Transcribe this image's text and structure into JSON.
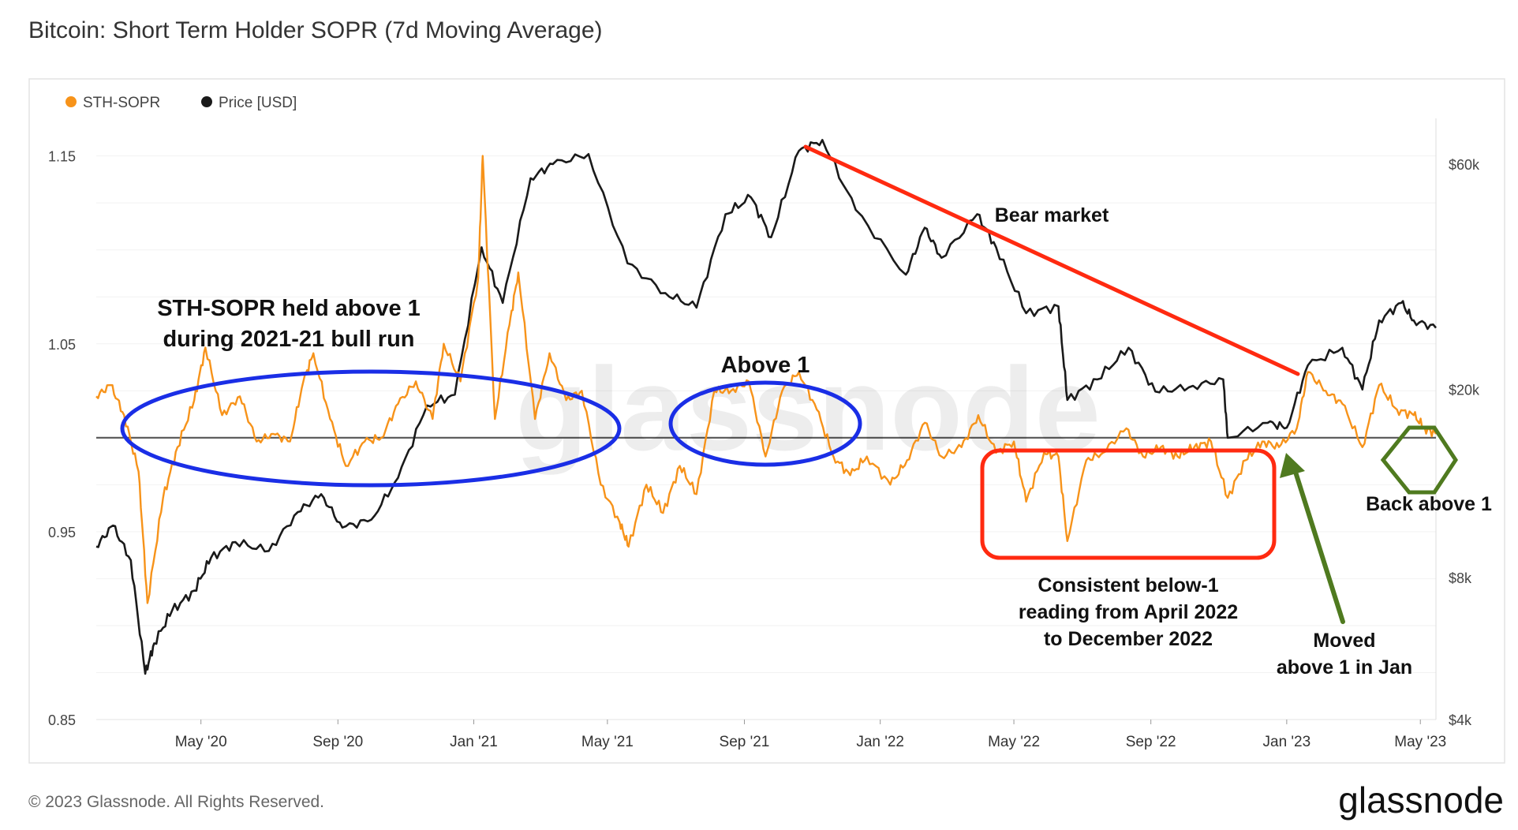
{
  "title": "Bitcoin: Short Term Holder SOPR (7d Moving Average)",
  "footer": "© 2023 Glassnode. All Rights Reserved.",
  "brand": "glassnode",
  "watermark": "glassnode",
  "colors": {
    "sopr": "#f7931a",
    "price": "#1a1a1a",
    "baseline": "#555555",
    "red": "#ff2a10",
    "blue": "#1a2ee6",
    "green": "#4f7a1f"
  },
  "chart_data": {
    "type": "line",
    "title": "Bitcoin: Short Term Holder SOPR (7d Moving Average)",
    "legend": [
      "STH-SOPR",
      "Price [USD]"
    ],
    "legend_position": "top-left",
    "x_ticks": [
      "May '20",
      "Sep '20",
      "Jan '21",
      "May '21",
      "Sep '21",
      "Jan '22",
      "May '22",
      "Sep '22",
      "Jan '23",
      "May '23"
    ],
    "y_left_ticks": [
      1.15,
      1.05,
      0.95,
      0.85
    ],
    "y_left_tick_labels": [
      "1.15",
      "1.05",
      "0.95",
      "0.85"
    ],
    "y_left_range": [
      0.85,
      1.17
    ],
    "y_right_ticks": [
      60000,
      20000,
      8000,
      4000
    ],
    "y_right_tick_labels": [
      "$60k",
      "$20k",
      "$8k",
      "$4k"
    ],
    "y_right_range": [
      4000,
      75000
    ],
    "y_right_scale": "log",
    "baseline": 1.0,
    "grid": true,
    "series": [
      {
        "name": "STH-SOPR",
        "axis": "left",
        "points": [
          [
            "2020-01-28",
            1.022
          ],
          [
            "2020-02-10",
            1.028
          ],
          [
            "2020-02-22",
            1.012
          ],
          [
            "2020-03-06",
            0.982
          ],
          [
            "2020-03-14",
            0.912
          ],
          [
            "2020-03-28",
            0.968
          ],
          [
            "2020-04-10",
            0.995
          ],
          [
            "2020-04-25",
            1.02
          ],
          [
            "2020-05-05",
            1.048
          ],
          [
            "2020-05-20",
            1.012
          ],
          [
            "2020-06-05",
            1.022
          ],
          [
            "2020-06-20",
            0.998
          ],
          [
            "2020-07-05",
            1.002
          ],
          [
            "2020-07-20",
            0.998
          ],
          [
            "2020-08-01",
            1.03
          ],
          [
            "2020-08-10",
            1.045
          ],
          [
            "2020-08-25",
            1.01
          ],
          [
            "2020-09-08",
            0.985
          ],
          [
            "2020-09-25",
            0.998
          ],
          [
            "2020-10-10",
            1.0
          ],
          [
            "2020-10-25",
            1.018
          ],
          [
            "2020-11-10",
            1.03
          ],
          [
            "2020-11-25",
            1.01
          ],
          [
            "2020-12-05",
            1.05
          ],
          [
            "2020-12-20",
            1.03
          ],
          [
            "2021-01-05",
            1.085
          ],
          [
            "2021-01-09",
            1.15
          ],
          [
            "2021-01-20",
            1.01
          ],
          [
            "2021-02-02",
            1.06
          ],
          [
            "2021-02-10",
            1.088
          ],
          [
            "2021-02-25",
            1.01
          ],
          [
            "2021-03-10",
            1.045
          ],
          [
            "2021-03-25",
            1.02
          ],
          [
            "2021-04-08",
            1.025
          ],
          [
            "2021-04-25",
            0.975
          ],
          [
            "2021-05-12",
            0.955
          ],
          [
            "2021-05-20",
            0.942
          ],
          [
            "2021-06-05",
            0.975
          ],
          [
            "2021-06-20",
            0.96
          ],
          [
            "2021-07-05",
            0.985
          ],
          [
            "2021-07-20",
            0.97
          ],
          [
            "2021-08-05",
            1.025
          ],
          [
            "2021-08-20",
            1.025
          ],
          [
            "2021-09-05",
            1.03
          ],
          [
            "2021-09-20",
            0.99
          ],
          [
            "2021-10-05",
            1.025
          ],
          [
            "2021-10-20",
            1.035
          ],
          [
            "2021-11-05",
            1.015
          ],
          [
            "2021-11-20",
            0.99
          ],
          [
            "2021-12-05",
            0.98
          ],
          [
            "2021-12-20",
            0.99
          ],
          [
            "2022-01-10",
            0.975
          ],
          [
            "2022-01-25",
            0.988
          ],
          [
            "2022-02-10",
            1.008
          ],
          [
            "2022-02-25",
            0.99
          ],
          [
            "2022-03-15",
            0.995
          ],
          [
            "2022-03-30",
            1.012
          ],
          [
            "2022-04-15",
            0.992
          ],
          [
            "2022-05-01",
            0.998
          ],
          [
            "2022-05-12",
            0.966
          ],
          [
            "2022-05-28",
            0.992
          ],
          [
            "2022-06-10",
            0.99
          ],
          [
            "2022-06-18",
            0.945
          ],
          [
            "2022-07-05",
            0.988
          ],
          [
            "2022-07-20",
            0.992
          ],
          [
            "2022-08-10",
            1.005
          ],
          [
            "2022-08-25",
            0.99
          ],
          [
            "2022-09-10",
            0.995
          ],
          [
            "2022-09-25",
            0.99
          ],
          [
            "2022-10-10",
            0.995
          ],
          [
            "2022-10-25",
            0.998
          ],
          [
            "2022-11-09",
            0.968
          ],
          [
            "2022-11-25",
            0.988
          ],
          [
            "2022-12-10",
            0.998
          ],
          [
            "2022-12-25",
            0.995
          ],
          [
            "2023-01-10",
            1.005
          ],
          [
            "2023-01-20",
            1.035
          ],
          [
            "2023-02-05",
            1.025
          ],
          [
            "2023-02-20",
            1.018
          ],
          [
            "2023-03-10",
            0.995
          ],
          [
            "2023-03-25",
            1.028
          ],
          [
            "2023-04-10",
            1.015
          ],
          [
            "2023-04-25",
            1.012
          ],
          [
            "2023-05-05",
            1.005
          ],
          [
            "2023-05-15",
            1.002
          ]
        ]
      },
      {
        "name": "Price [USD]",
        "axis": "right",
        "points": [
          [
            "2020-01-28",
            9300
          ],
          [
            "2020-02-12",
            10300
          ],
          [
            "2020-02-28",
            8700
          ],
          [
            "2020-03-12",
            5000
          ],
          [
            "2020-03-20",
            5800
          ],
          [
            "2020-04-05",
            6800
          ],
          [
            "2020-04-25",
            7500
          ],
          [
            "2020-05-10",
            8800
          ],
          [
            "2020-06-01",
            9500
          ],
          [
            "2020-07-01",
            9100
          ],
          [
            "2020-07-27",
            11000
          ],
          [
            "2020-08-17",
            12000
          ],
          [
            "2020-09-05",
            10200
          ],
          [
            "2020-10-01",
            10600
          ],
          [
            "2020-10-25",
            13000
          ],
          [
            "2020-11-20",
            18500
          ],
          [
            "2020-12-15",
            19500
          ],
          [
            "2021-01-08",
            40000
          ],
          [
            "2021-01-27",
            30500
          ],
          [
            "2021-02-21",
            56000
          ],
          [
            "2021-03-13",
            60000
          ],
          [
            "2021-04-14",
            63000
          ],
          [
            "2021-05-19",
            37000
          ],
          [
            "2021-06-22",
            32000
          ],
          [
            "2021-07-20",
            29800
          ],
          [
            "2021-08-15",
            47000
          ],
          [
            "2021-09-07",
            51000
          ],
          [
            "2021-09-25",
            42000
          ],
          [
            "2021-10-20",
            64000
          ],
          [
            "2021-11-10",
            67500
          ],
          [
            "2021-12-10",
            48000
          ],
          [
            "2022-01-24",
            35000
          ],
          [
            "2022-02-10",
            44000
          ],
          [
            "2022-02-25",
            38000
          ],
          [
            "2022-03-29",
            47000
          ],
          [
            "2022-04-15",
            40000
          ],
          [
            "2022-05-12",
            29000
          ],
          [
            "2022-06-10",
            30000
          ],
          [
            "2022-06-18",
            19000
          ],
          [
            "2022-07-15",
            21000
          ],
          [
            "2022-08-12",
            24500
          ],
          [
            "2022-09-05",
            19800
          ],
          [
            "2022-10-05",
            20200
          ],
          [
            "2022-11-05",
            21000
          ],
          [
            "2022-11-09",
            15800
          ],
          [
            "2022-12-15",
            17000
          ],
          [
            "2023-01-01",
            16600
          ],
          [
            "2023-01-20",
            22500
          ],
          [
            "2023-02-20",
            24500
          ],
          [
            "2023-03-10",
            20000
          ],
          [
            "2023-03-25",
            28000
          ],
          [
            "2023-04-14",
            30500
          ],
          [
            "2023-04-25",
            28000
          ],
          [
            "2023-05-15",
            27000
          ]
        ]
      }
    ],
    "annotations": [
      {
        "text": "STH-SOPR held above 1\nduring 2021-21 bull run",
        "shape": "ellipse",
        "color": "blue"
      },
      {
        "text": "Above 1",
        "shape": "ellipse",
        "color": "blue"
      },
      {
        "text": "Bear market",
        "shape": "line",
        "color": "red"
      },
      {
        "text": "Consistent below-1\nreading from April 2022\nto December 2022",
        "shape": "rounded-rectangle",
        "color": "red"
      },
      {
        "text": "Moved\nabove 1 in Jan",
        "shape": "arrow",
        "color": "green"
      },
      {
        "text": "Back above 1",
        "shape": "hexagon",
        "color": "green"
      }
    ]
  }
}
